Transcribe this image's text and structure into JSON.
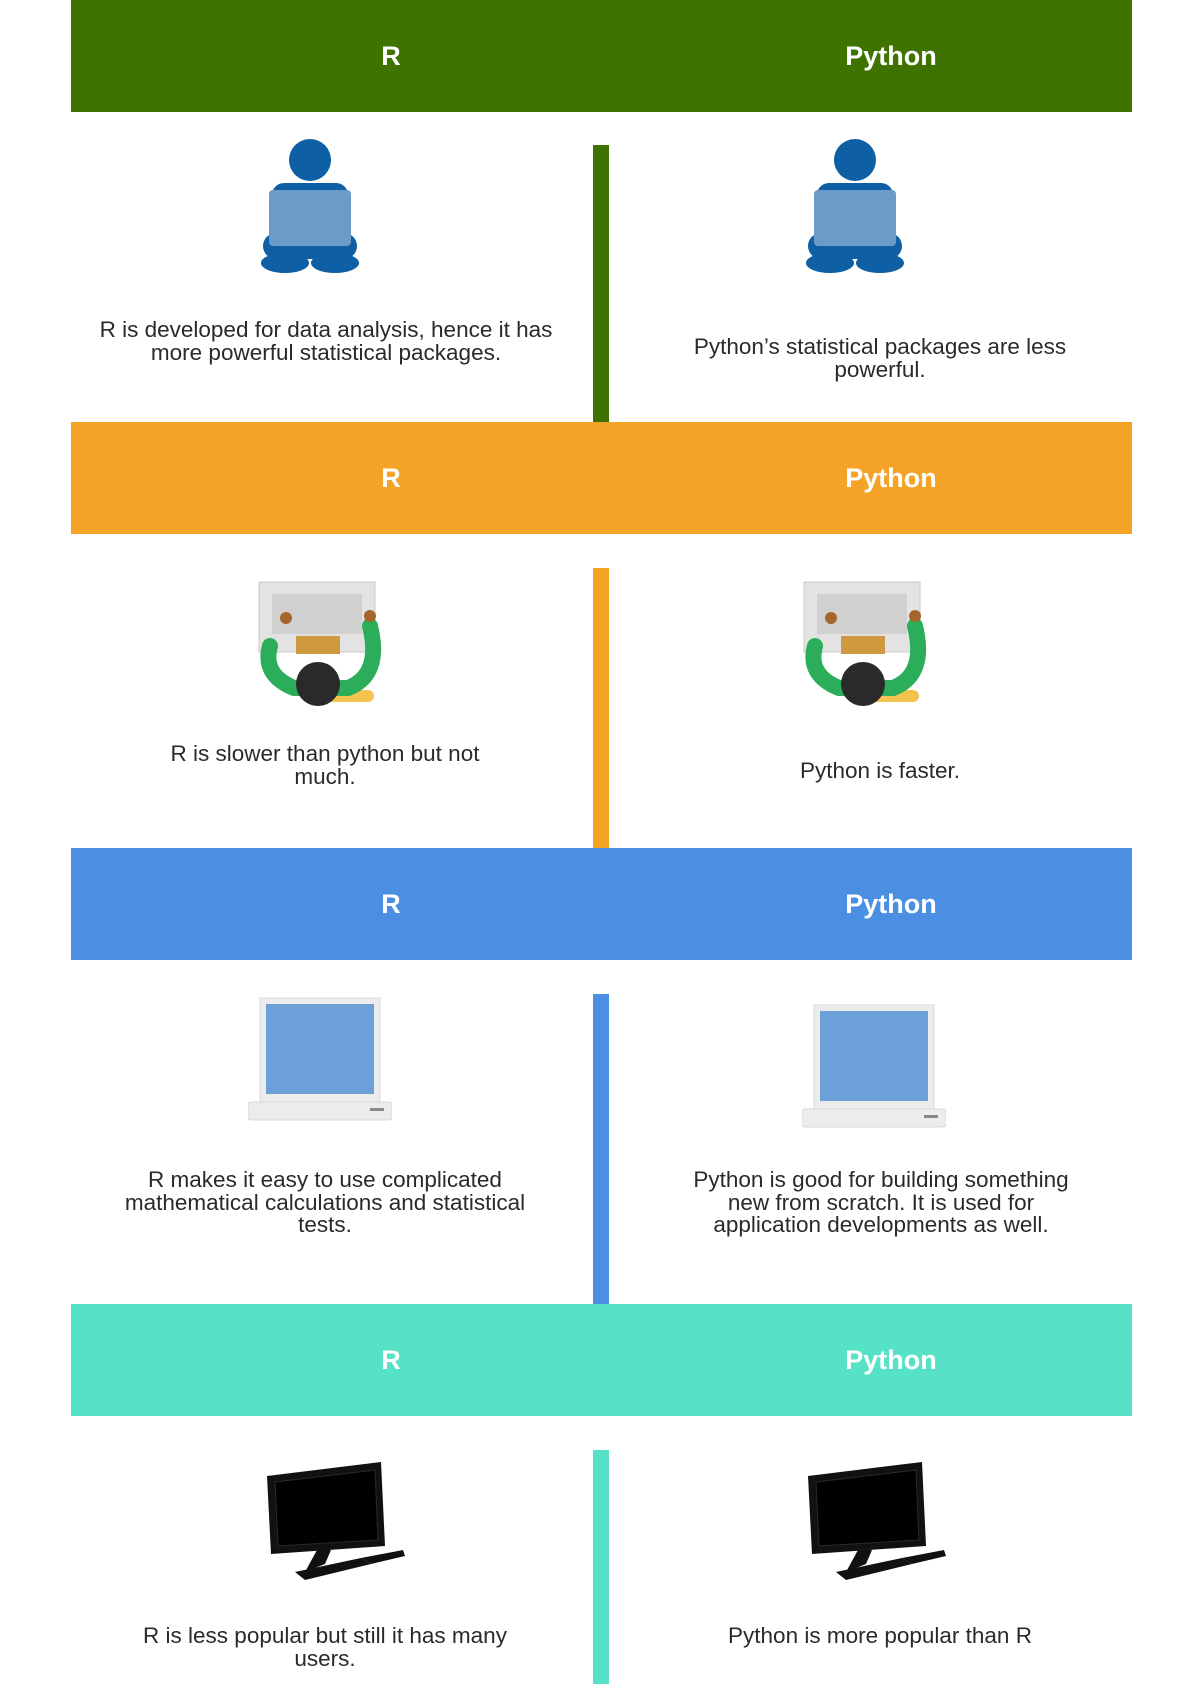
{
  "sections": [
    {
      "color": "#3f7300",
      "left_header": "R",
      "right_header": "Python",
      "left_icon": "person-laptop-icon",
      "right_icon": "person-laptop-icon",
      "left_text": "R is developed for data analysis, hence it has more powerful statistical packages.",
      "right_text": "Python’s statistical packages are less powerful."
    },
    {
      "color": "#f4a326",
      "left_header": "R",
      "right_header": "Python",
      "left_icon": "person-typing-icon",
      "right_icon": "person-typing-icon",
      "left_text": "R is slower than python but not much.",
      "right_text": "Python is faster."
    },
    {
      "color": "#4a8fe2",
      "left_header": "R",
      "right_header": "Python",
      "left_icon": "laptop-icon",
      "right_icon": "laptop-icon",
      "left_text": "R makes it easy to use complicated mathematical calculations and statistical tests.",
      "right_text": "Python is good for building something new from scratch. It is used for application developments as well."
    },
    {
      "color": "#56e2c6",
      "left_header": "R",
      "right_header": "Python",
      "left_icon": "desktop-computer-icon",
      "right_icon": "desktop-computer-icon",
      "left_text": "R is less popular but still it has many users.",
      "right_text": "Python is more popular than R"
    }
  ]
}
